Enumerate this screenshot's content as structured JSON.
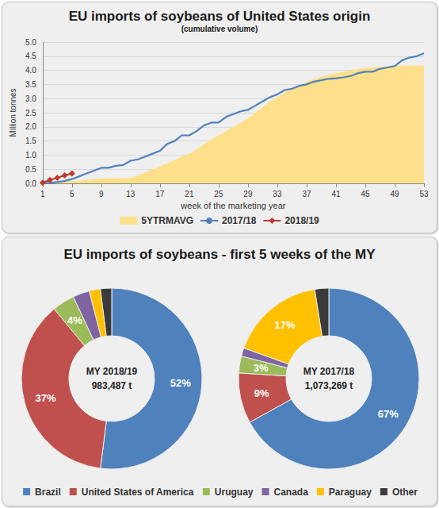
{
  "chart_data": [
    {
      "type": "line",
      "title": "EU imports of soybeans of United States origin",
      "subtitle": "(cumulative volume)",
      "x_label": "week of the marketing year",
      "y_label": "Million tonnes",
      "x": [
        1,
        2,
        3,
        4,
        5,
        6,
        7,
        8,
        9,
        10,
        11,
        12,
        13,
        14,
        15,
        16,
        17,
        18,
        19,
        20,
        21,
        22,
        23,
        24,
        25,
        26,
        27,
        28,
        29,
        30,
        31,
        32,
        33,
        34,
        35,
        36,
        37,
        38,
        39,
        40,
        41,
        42,
        43,
        44,
        45,
        46,
        47,
        48,
        49,
        50,
        51,
        52,
        53
      ],
      "xlim": [
        1,
        53
      ],
      "xticks": [
        1,
        5,
        9,
        13,
        17,
        21,
        25,
        29,
        33,
        37,
        41,
        45,
        49,
        53
      ],
      "ylim": [
        0,
        5
      ],
      "yticks": [
        {
          "value": 0,
          "label": "0.0"
        },
        0.5,
        {
          "value": 1,
          "label": "1.0"
        },
        1.5,
        {
          "value": 2,
          "label": "2.0"
        },
        2.5,
        {
          "value": 3,
          "label": "3.0"
        },
        3.5,
        {
          "value": 4,
          "label": "4.0"
        },
        4.5,
        {
          "value": 5,
          "label": "5.0"
        }
      ],
      "grid": true,
      "legend": "bottom",
      "series": [
        {
          "name": "5YTRMAVG",
          "type": "area",
          "color": "#ffe08a",
          "values": [
            0,
            0.02,
            0.04,
            0.06,
            0.08,
            0.1,
            0.12,
            0.15,
            0.17,
            0.18,
            0.18,
            0.18,
            0.2,
            0.28,
            0.38,
            0.5,
            0.6,
            0.72,
            0.82,
            0.95,
            1.05,
            1.2,
            1.38,
            1.55,
            1.7,
            1.85,
            2.0,
            2.15,
            2.3,
            2.5,
            2.7,
            2.9,
            3.05,
            3.2,
            3.35,
            3.45,
            3.6,
            3.7,
            3.78,
            3.85,
            3.9,
            3.95,
            4.0,
            4.05,
            4.08,
            4.1,
            4.12,
            4.14,
            4.15,
            4.16,
            4.17,
            4.17,
            4.17
          ]
        },
        {
          "name": "2017/18",
          "type": "line",
          "color": "#4f81bd",
          "values": [
            0,
            0.02,
            0.05,
            0.08,
            0.15,
            0.25,
            0.35,
            0.45,
            0.55,
            0.55,
            0.62,
            0.65,
            0.8,
            0.85,
            0.95,
            1.05,
            1.15,
            1.4,
            1.5,
            1.7,
            1.7,
            1.85,
            2.05,
            2.15,
            2.15,
            2.35,
            2.45,
            2.55,
            2.6,
            2.75,
            2.9,
            3.05,
            3.15,
            3.3,
            3.35,
            3.45,
            3.5,
            3.6,
            3.65,
            3.7,
            3.72,
            3.75,
            3.8,
            3.9,
            3.95,
            3.95,
            4.05,
            4.1,
            4.15,
            4.35,
            4.45,
            4.5,
            4.6
          ]
        },
        {
          "name": "2018/19",
          "type": "line",
          "color": "#c0392b",
          "marker": "diamond",
          "values": [
            0.02,
            0.12,
            0.2,
            0.28,
            0.35,
            null,
            null,
            null,
            null,
            null,
            null,
            null,
            null,
            null,
            null,
            null,
            null,
            null,
            null,
            null,
            null,
            null,
            null,
            null,
            null,
            null,
            null,
            null,
            null,
            null,
            null,
            null,
            null,
            null,
            null,
            null,
            null,
            null,
            null,
            null,
            null,
            null,
            null,
            null,
            null,
            null,
            null,
            null,
            null,
            null,
            null,
            null,
            null
          ]
        }
      ]
    },
    {
      "type": "pie",
      "title": "EU imports of soybeans - first 5 weeks of the MY",
      "categories": [
        "Brazil",
        "United States of America",
        "Uruguay",
        "Canada",
        "Paraguay",
        "Other"
      ],
      "colors": [
        "#4f81bd",
        "#c0504d",
        "#9bbb59",
        "#8064a2",
        "#ffc000",
        "#3a3a3a"
      ],
      "legend": "bottom",
      "data_labels": true,
      "series": [
        {
          "name": "MY 2018/19",
          "total_label": "983,487 t",
          "values": [
            52,
            37,
            4,
            3,
            2,
            2
          ],
          "value_labels": [
            "52%",
            "37%",
            "4%",
            null,
            null,
            null
          ]
        },
        {
          "name": "MY 2017/18",
          "total_label": "1,073,269 t",
          "values": [
            67,
            9,
            3,
            1.5,
            17,
            2.5
          ],
          "value_labels": [
            "67%",
            "9%",
            "3%",
            null,
            "17%",
            null
          ]
        }
      ]
    }
  ]
}
